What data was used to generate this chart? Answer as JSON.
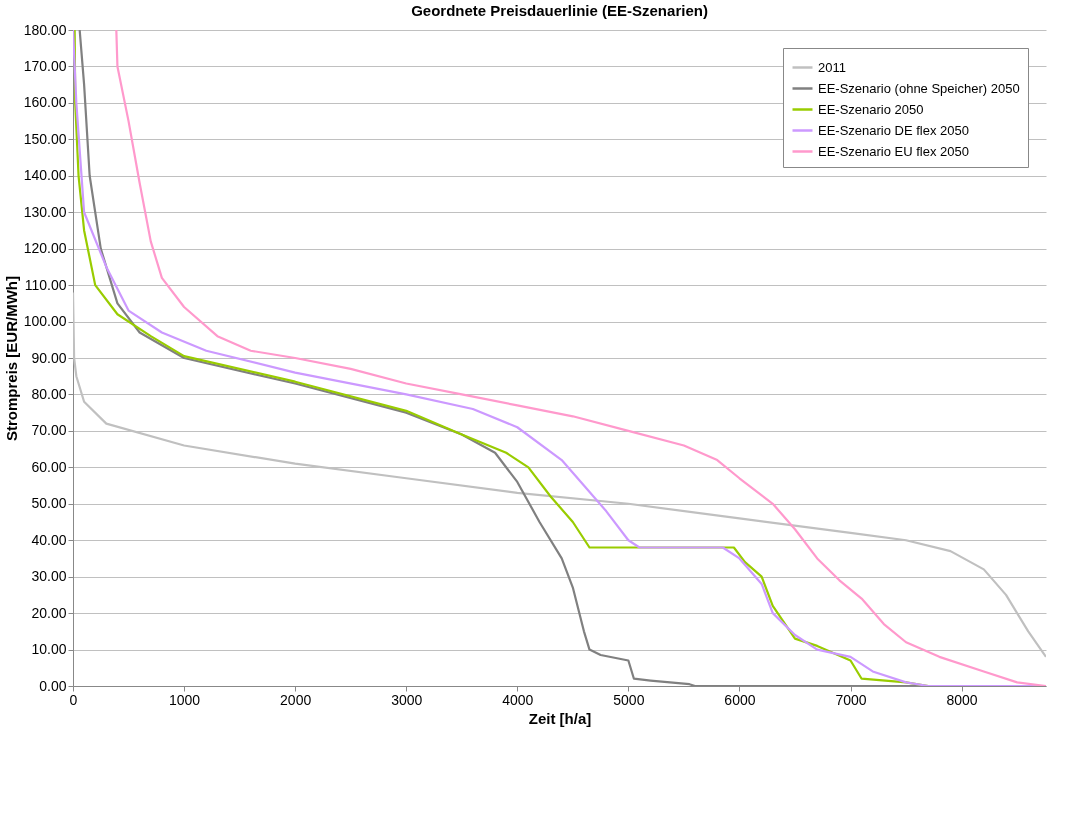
{
  "chart_data": {
    "type": "line",
    "title": "Geordnete Preisdauerlinie (EE-Szenarien)",
    "xlabel": "Zeit [h/a]",
    "ylabel": "Strompreis [EUR/MWh]",
    "xlim": [
      0,
      8760
    ],
    "xticks": [
      0,
      1000,
      2000,
      3000,
      4000,
      5000,
      6000,
      7000,
      8000
    ],
    "ylim": [
      0,
      180
    ],
    "yticks": [
      {
        "value": 0,
        "label": "0.00"
      },
      {
        "value": 10,
        "label": "10.00"
      },
      {
        "value": 20,
        "label": "20.00"
      },
      {
        "value": 30,
        "label": "30.00"
      },
      {
        "value": 40,
        "label": "40.00"
      },
      {
        "value": 50,
        "label": "50.00"
      },
      {
        "value": 60,
        "label": "60.00"
      },
      {
        "value": 70,
        "label": "70.00"
      },
      {
        "value": 80,
        "label": "80.00"
      },
      {
        "value": 90,
        "label": "90.00"
      },
      {
        "value": 100,
        "label": "100.00"
      },
      {
        "value": 110,
        "label": "110.00"
      },
      {
        "value": 120,
        "label": "120.00"
      },
      {
        "value": 130,
        "label": "130.00"
      },
      {
        "value": 140,
        "label": "140.00"
      },
      {
        "value": 150,
        "label": "150.00"
      },
      {
        "value": 160,
        "label": "160.00"
      },
      {
        "value": 170,
        "label": "170.00"
      },
      {
        "value": 180,
        "label": "180.00"
      }
    ],
    "grid": "y",
    "legend": "top right",
    "marker": "none",
    "line_style": "solid",
    "series": [
      {
        "name": "2011",
        "color": "#c0c0c0",
        "x": [
          0,
          10,
          30,
          100,
          300,
          1000,
          2000,
          3000,
          4000,
          5000,
          6000,
          7000,
          7500,
          7900,
          8200,
          8400,
          8600,
          8760
        ],
        "values": [
          108,
          90,
          85,
          78,
          72,
          66,
          61,
          57,
          53,
          50,
          46,
          42,
          40,
          37,
          32,
          25,
          15,
          8
        ]
      },
      {
        "name": "EE-Szenario (ohne Speicher) 2050",
        "color": "#808080",
        "x": [
          60,
          100,
          150,
          250,
          400,
          600,
          1000,
          2000,
          3000,
          3500,
          3800,
          4000,
          4200,
          4400,
          4500,
          4600,
          4650,
          4750,
          5000,
          5050,
          5200,
          5550,
          5600,
          8760
        ],
        "values": [
          180,
          165,
          140,
          120,
          105,
          97,
          90,
          83,
          75,
          69,
          64,
          56,
          45,
          35,
          27,
          15,
          10,
          8.5,
          7,
          2,
          1.5,
          0.5,
          0,
          0
        ]
      },
      {
        "name": "EE-Szenario 2050",
        "color": "#99cc00",
        "x": [
          15,
          20,
          50,
          100,
          200,
          400,
          700,
          1000,
          2000,
          3000,
          3500,
          3900,
          4100,
          4300,
          4500,
          4650,
          5950,
          6050,
          6200,
          6300,
          6500,
          6700,
          7000,
          7100,
          7500,
          7700,
          8760
        ],
        "values": [
          180,
          160,
          140,
          125,
          110,
          102,
          96,
          90.5,
          83.5,
          75.5,
          69,
          64,
          60,
          52,
          45,
          38,
          38,
          34,
          30,
          22,
          13,
          11,
          7,
          2,
          1,
          0,
          0
        ]
      },
      {
        "name": "EE-Szenario DE flex 2050",
        "color": "#cc99ff",
        "x": [
          0,
          30,
          100,
          300,
          500,
          800,
          1200,
          2000,
          3000,
          3600,
          4000,
          4400,
          4600,
          4800,
          5000,
          5100,
          5850,
          6000,
          6200,
          6300,
          6500,
          6700,
          7000,
          7200,
          7500,
          7700,
          8760
        ],
        "values": [
          180,
          160,
          130,
          115,
          103,
          97,
          92,
          86,
          80,
          76,
          71,
          62,
          55,
          48,
          40,
          38,
          38,
          35,
          28,
          20,
          14,
          10,
          8,
          4,
          1,
          0,
          0
        ]
      },
      {
        "name": "EE-Szenario EU flex 2050",
        "color": "#ff99cc",
        "x": [
          390,
          400,
          500,
          600,
          700,
          800,
          1000,
          1300,
          1600,
          2000,
          2500,
          3000,
          3500,
          4000,
          4500,
          5000,
          5500,
          5800,
          6000,
          6300,
          6500,
          6700,
          6900,
          7100,
          7300,
          7500,
          7800,
          8200,
          8500,
          8760
        ],
        "values": [
          180,
          170,
          155,
          138,
          122,
          112,
          104,
          96,
          92,
          90,
          87,
          83,
          80,
          77,
          74,
          70,
          66,
          62,
          57,
          50,
          43,
          35,
          29,
          24,
          17,
          12,
          8,
          4,
          1,
          0
        ]
      }
    ]
  }
}
